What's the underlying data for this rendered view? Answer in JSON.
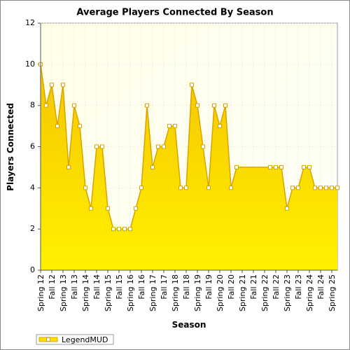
{
  "chart_data": {
    "type": "area",
    "title": "Average Players Connected By Season",
    "x_label": "Season",
    "y_label": "Players Connected",
    "categories": [
      "Spring 12",
      null,
      "Fall 12",
      null,
      "Spring 13",
      null,
      "Fall 13",
      null,
      "Spring 14",
      null,
      "Fall 14",
      null,
      "Spring 15",
      null,
      "Fall 15",
      null,
      "Spring 16",
      null,
      "Fall 16",
      null,
      "Spring 17",
      null,
      "Fall 17",
      null,
      "Spring 18",
      null,
      "Fall 18",
      null,
      "Spring 19",
      null,
      "Fall 19",
      null,
      "Spring 20",
      null,
      "Fall 20",
      null,
      "Spring 21",
      null,
      "Fall 21",
      null,
      "Spring 22",
      null,
      "Fall 22",
      null,
      "Spring 23",
      null,
      "Fall 23",
      null,
      "Spring 24",
      null,
      "Fall 24",
      null,
      "Spring 25",
      null
    ],
    "series": [
      {
        "name": "LegendMUD",
        "color": "#ffe100",
        "values": [
          10,
          8,
          9,
          7,
          9,
          5,
          8,
          7,
          4,
          3,
          6,
          6,
          3,
          2,
          2,
          2,
          2,
          3,
          4,
          8,
          5,
          6,
          6,
          7,
          7,
          4,
          4,
          9,
          8,
          6,
          4,
          8,
          7,
          8,
          4,
          5,
          null,
          null,
          null,
          null,
          null,
          5,
          5,
          5,
          3,
          4,
          4,
          5,
          5,
          4,
          4,
          4,
          4,
          4
        ]
      }
    ],
    "ylim": [
      0,
      12
    ],
    "yticks": [
      0,
      2,
      4,
      6,
      8,
      10,
      12
    ],
    "grid": true
  }
}
